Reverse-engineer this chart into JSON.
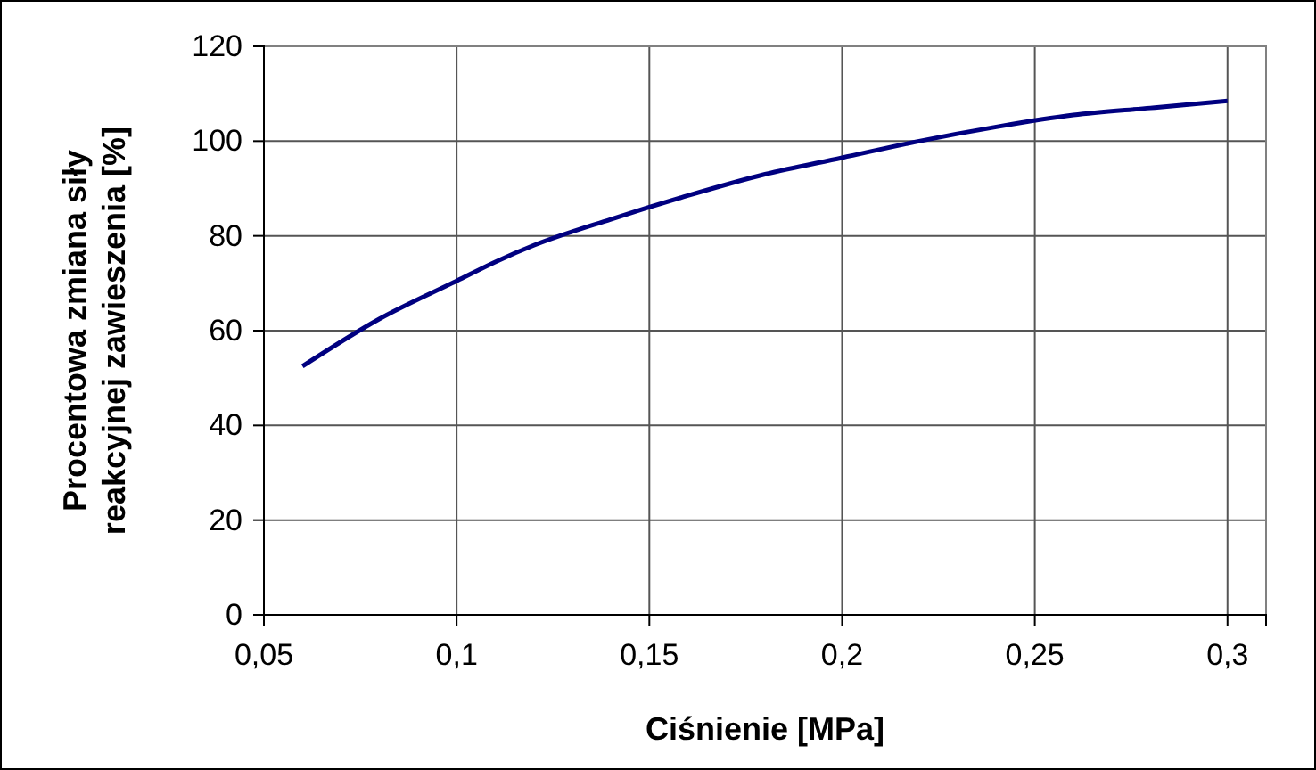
{
  "chart_data": {
    "type": "line",
    "xlabel": "Ciśnienie [MPa]",
    "ylabel": "Procentowa zmiana siły\nreakcyjnej zawieszenia [%]",
    "x": [
      0.06,
      0.08,
      0.1,
      0.11,
      0.12,
      0.14,
      0.16,
      0.18,
      0.2,
      0.22,
      0.24,
      0.26,
      0.28,
      0.3
    ],
    "series": [
      {
        "color": "#000080",
        "values": [
          52.5,
          62.5,
          70.5,
          74.5,
          78,
          83.5,
          88.5,
          93,
          96.5,
          100,
          103,
          105.5,
          107,
          108.5
        ]
      }
    ],
    "xlim": [
      0.05,
      0.31
    ],
    "xticks": [
      {
        "value": 0.05,
        "label": "0,05"
      },
      {
        "value": 0.1,
        "label": "0,1"
      },
      {
        "value": 0.15,
        "label": "0,15"
      },
      {
        "value": 0.2,
        "label": "0,2"
      },
      {
        "value": 0.25,
        "label": "0,25"
      },
      {
        "value": 0.3,
        "label": "0,3"
      }
    ],
    "ylim": [
      0,
      120
    ],
    "yticks": [
      0,
      20,
      40,
      60,
      80,
      100,
      120
    ],
    "grid": true,
    "marker": "none",
    "line_style": "solid"
  }
}
